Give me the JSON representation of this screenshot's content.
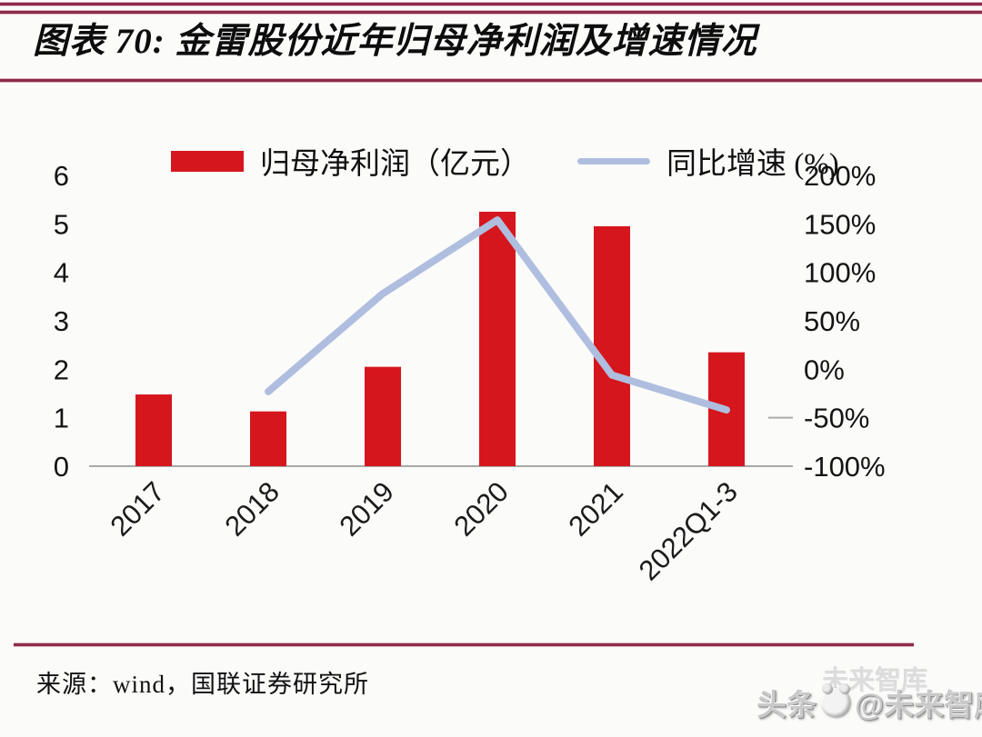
{
  "header": {
    "title": "图表 70:  金雷股份近年归母净利润及增速情况"
  },
  "colors": {
    "bar": "#d6161d",
    "line": "#afbedf",
    "rule": "#8d2a4a",
    "axis": "#a9a9a9",
    "ink": "#141414"
  },
  "chart_data": {
    "type": "bar",
    "title": "金雷股份近年归母净利润及增速情况",
    "categories": [
      "2017",
      "2018",
      "2019",
      "2020",
      "2021",
      "2022Q1-3"
    ],
    "series": [
      {
        "name": "归母净利润（亿元）",
        "type": "bar",
        "axis": "left",
        "color": "#d6161d",
        "values": [
          1.48,
          1.13,
          2.05,
          5.25,
          4.95,
          2.35
        ]
      },
      {
        "name": "同比增速 (%)",
        "type": "line",
        "axis": "right",
        "color": "#afbedf",
        "values": [
          null,
          -23,
          78,
          154,
          -6,
          -42
        ]
      }
    ],
    "left_axis": {
      "ticks": [
        6,
        5,
        4,
        3,
        2,
        1,
        0
      ],
      "range": [
        0,
        6
      ]
    },
    "right_axis": {
      "ticks": [
        "200%",
        "150%",
        "100%",
        "50%",
        "0%",
        "-50%",
        "-100%"
      ],
      "range": [
        -100,
        200
      ]
    },
    "legend_position": "top",
    "grid": false,
    "xlabel_rotation": -45
  },
  "source": {
    "label": "来源：wind，国联证券研究所"
  },
  "watermark": {
    "prefix": "头条",
    "handle": "@未来智库",
    "ghost": "未来智库",
    "logo": "panda-logo"
  }
}
